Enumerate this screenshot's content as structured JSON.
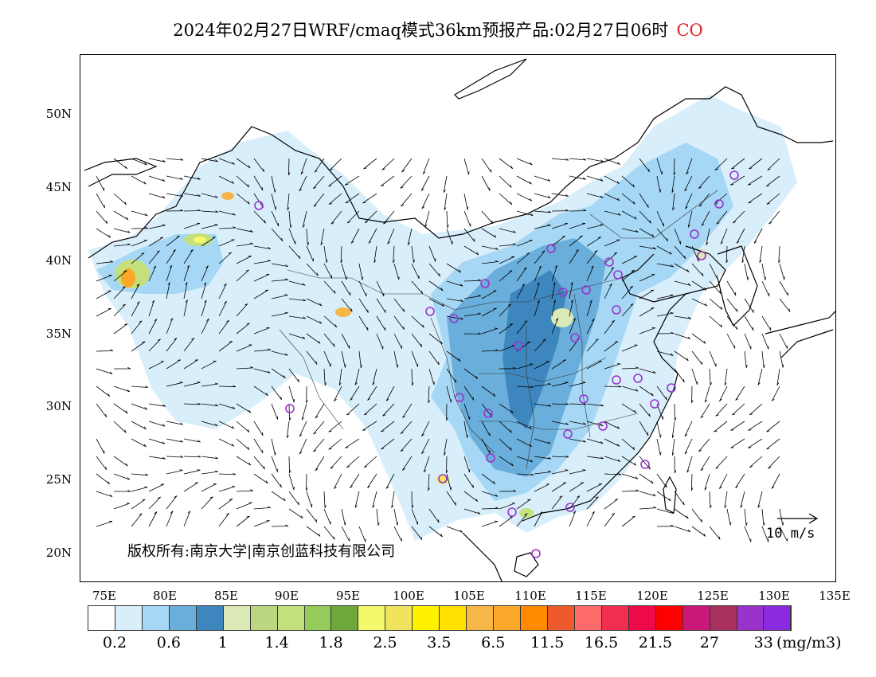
{
  "title": {
    "main": "2024年02月27日WRF/cmaq模式36km预报产品:02月27日06时",
    "species": "CO"
  },
  "map": {
    "lat_labels": [
      "50N",
      "45N",
      "40N",
      "35N",
      "30N",
      "25N",
      "20N"
    ],
    "lon_labels": [
      "75E",
      "80E",
      "85E",
      "90E",
      "95E",
      "100E",
      "105E",
      "110E",
      "115E",
      "120E",
      "125E",
      "130E",
      "135E"
    ],
    "copyright": "版权所有:南京大学|南京创蓝科技有限公司",
    "reference_vector_label": "10 m/s"
  },
  "legend": {
    "colors": [
      "#ffffff",
      "#d8eefa",
      "#a6d8f5",
      "#6aaedb",
      "#3e87be",
      "#dbe9b6",
      "#bcd77f",
      "#c3e07a",
      "#93cc5a",
      "#6da93a",
      "#f4f96c",
      "#f0e45e",
      "#fff200",
      "#ffe000",
      "#f7b648",
      "#fba82a",
      "#ff8a00",
      "#ee5a2e",
      "#ff6a6a",
      "#f02f50",
      "#ee0a48",
      "#ff0000",
      "#c8187a",
      "#a8305c",
      "#9933cc",
      "#8a2be2"
    ],
    "labels": [
      "0.2",
      "0.6",
      "1",
      "1.4",
      "1.8",
      "2.5",
      "3.5",
      "6.5",
      "11.5",
      "16.5",
      "21.5",
      "27",
      "33"
    ],
    "unit": "(mg/m3)"
  },
  "station_markers_color": "#9933cc"
}
